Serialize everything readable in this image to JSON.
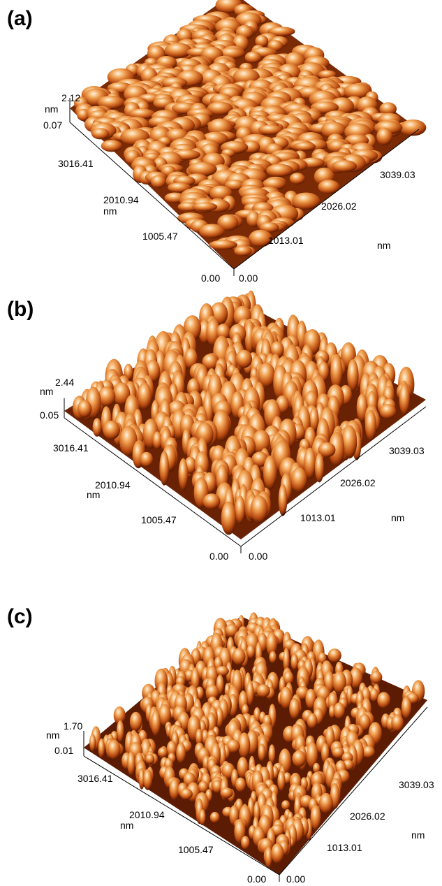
{
  "panels": [
    {
      "label": "(a)",
      "z_unit": "nm",
      "z_max": "2.12",
      "z_min": "0.07",
      "y_ticks": [
        "3016.41",
        "2010.94",
        "1005.47",
        "0.00"
      ],
      "y_unit": "nm",
      "x_ticks": [
        "0.00",
        "1013.01",
        "2026.02",
        "3039.03"
      ],
      "x_unit": "nm",
      "texture": "smooth-grains"
    },
    {
      "label": "(b)",
      "z_unit": "nm",
      "z_max": "2.44",
      "z_min": "0.05",
      "y_ticks": [
        "3016.41",
        "2010.94",
        "1005.47",
        "0.00"
      ],
      "y_unit": "nm",
      "x_ticks": [
        "0.00",
        "1013.01",
        "2026.02",
        "3039.03"
      ],
      "x_unit": "nm",
      "texture": "tall-peaks"
    },
    {
      "label": "(c)",
      "z_unit": "nm",
      "z_max": "1.70",
      "z_min": "0.01",
      "y_ticks": [
        "3016.41",
        "2010.94",
        "1005.47",
        "0.00"
      ],
      "y_unit": "nm",
      "x_ticks": [
        "0.00",
        "1013.01",
        "2026.02",
        "3039.03"
      ],
      "x_unit": "nm",
      "texture": "dense-peaks"
    }
  ],
  "colors": {
    "dark": "#5a1a00",
    "mid": "#b84a10",
    "light": "#f0a050",
    "highlight": "#fff2dc"
  }
}
